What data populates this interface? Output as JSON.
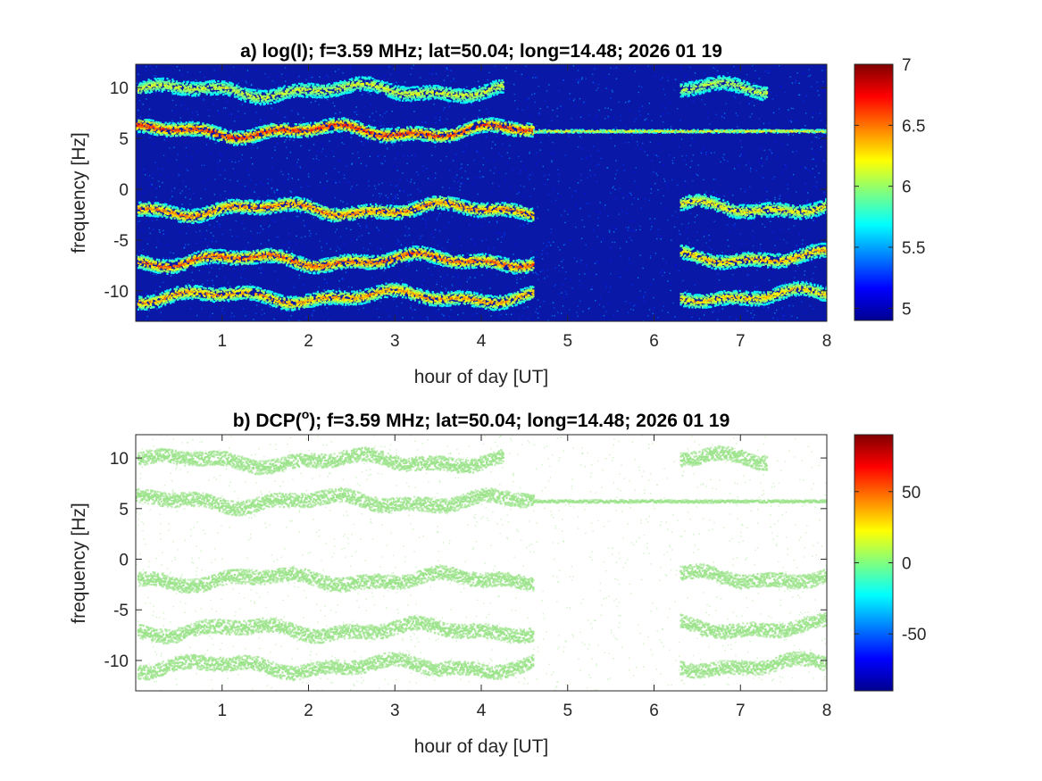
{
  "figure": {
    "background": "#ffffff"
  },
  "chart_data": [
    {
      "type": "heatmap",
      "title": "a) log(I); f=3.59 MHz;  lat=50.04; long=14.48; 2026 01 19",
      "xlabel": "hour of day [UT]",
      "ylabel": "frequency [Hz]",
      "xlim": [
        0,
        8
      ],
      "ylim": [
        -13,
        12.3
      ],
      "xticks": [
        1,
        2,
        3,
        4,
        5,
        6,
        7,
        8
      ],
      "xtick_labels": [
        "1",
        "2",
        "3",
        "4",
        "5",
        "6",
        "7",
        "8"
      ],
      "yticks": [
        10,
        5,
        0,
        -5,
        -10
      ],
      "ytick_labels": [
        "10",
        "5",
        "0",
        "-5",
        "-10"
      ],
      "colormap": "jet",
      "background_color": "#0a18a8",
      "colorbar": {
        "range": [
          4.9,
          7
        ],
        "ticks": [
          7,
          6.5,
          6,
          5.5,
          5
        ],
        "tick_labels": [
          "7",
          "6.5",
          "6",
          "5.5",
          "5"
        ]
      },
      "bands": [
        {
          "center_freq": 9.8,
          "x_start": 0.02,
          "x_end": 4.25,
          "strength": 0.45
        },
        {
          "center_freq": 5.8,
          "x_start": 0.0,
          "x_end": 4.6,
          "strength": 0.9
        },
        {
          "center_freq": 5.8,
          "x_start": 4.6,
          "x_end": 8.0,
          "strength": 0.55,
          "thin": true
        },
        {
          "center_freq": -1.9,
          "x_start": 0.02,
          "x_end": 4.6,
          "strength": 0.75
        },
        {
          "center_freq": -6.9,
          "x_start": 0.02,
          "x_end": 4.6,
          "strength": 0.8
        },
        {
          "center_freq": -10.5,
          "x_start": 0.02,
          "x_end": 4.6,
          "strength": 0.7
        },
        {
          "center_freq": 9.9,
          "x_start": 6.3,
          "x_end": 7.3,
          "strength": 0.4
        },
        {
          "center_freq": -1.7,
          "x_start": 6.3,
          "x_end": 8.0,
          "strength": 0.55
        },
        {
          "center_freq": -6.6,
          "x_start": 6.3,
          "x_end": 8.0,
          "strength": 0.65
        },
        {
          "center_freq": -10.4,
          "x_start": 6.3,
          "x_end": 8.0,
          "strength": 0.6
        }
      ]
    },
    {
      "type": "heatmap",
      "title_prefix": "b) DCP(",
      "title_sup": "o",
      "title_suffix": "); f=3.59 MHz;  lat=50.04; long=14.48; 2026 01 19",
      "xlabel": "hour of day [UT]",
      "ylabel": "frequency [Hz]",
      "xlim": [
        0,
        8
      ],
      "ylim": [
        -13,
        12.3
      ],
      "xticks": [
        1,
        2,
        3,
        4,
        5,
        6,
        7,
        8
      ],
      "xtick_labels": [
        "1",
        "2",
        "3",
        "4",
        "5",
        "6",
        "7",
        "8"
      ],
      "yticks": [
        10,
        5,
        0,
        -5,
        -10
      ],
      "ytick_labels": [
        "10",
        "5",
        "0",
        "-5",
        "-10"
      ],
      "colormap": "jet",
      "background_color": "#ffffff",
      "signal_color": "#9be38a",
      "colorbar": {
        "range": [
          -90,
          90
        ],
        "ticks": [
          50,
          0,
          -50
        ],
        "tick_labels": [
          "50",
          "0",
          "-50"
        ]
      },
      "bands": [
        {
          "center_freq": 9.8,
          "x_start": 0.02,
          "x_end": 4.25,
          "strength": 0.45
        },
        {
          "center_freq": 5.8,
          "x_start": 0.0,
          "x_end": 4.6,
          "strength": 0.9
        },
        {
          "center_freq": 5.8,
          "x_start": 4.6,
          "x_end": 8.0,
          "strength": 0.55,
          "thin": true
        },
        {
          "center_freq": -1.9,
          "x_start": 0.02,
          "x_end": 4.6,
          "strength": 0.75
        },
        {
          "center_freq": -6.9,
          "x_start": 0.02,
          "x_end": 4.6,
          "strength": 0.8
        },
        {
          "center_freq": -10.5,
          "x_start": 0.02,
          "x_end": 4.6,
          "strength": 0.7
        },
        {
          "center_freq": 9.9,
          "x_start": 6.3,
          "x_end": 7.3,
          "strength": 0.4
        },
        {
          "center_freq": -1.7,
          "x_start": 6.3,
          "x_end": 8.0,
          "strength": 0.55
        },
        {
          "center_freq": -6.6,
          "x_start": 6.3,
          "x_end": 8.0,
          "strength": 0.65
        },
        {
          "center_freq": -10.4,
          "x_start": 6.3,
          "x_end": 8.0,
          "strength": 0.6
        }
      ]
    }
  ]
}
